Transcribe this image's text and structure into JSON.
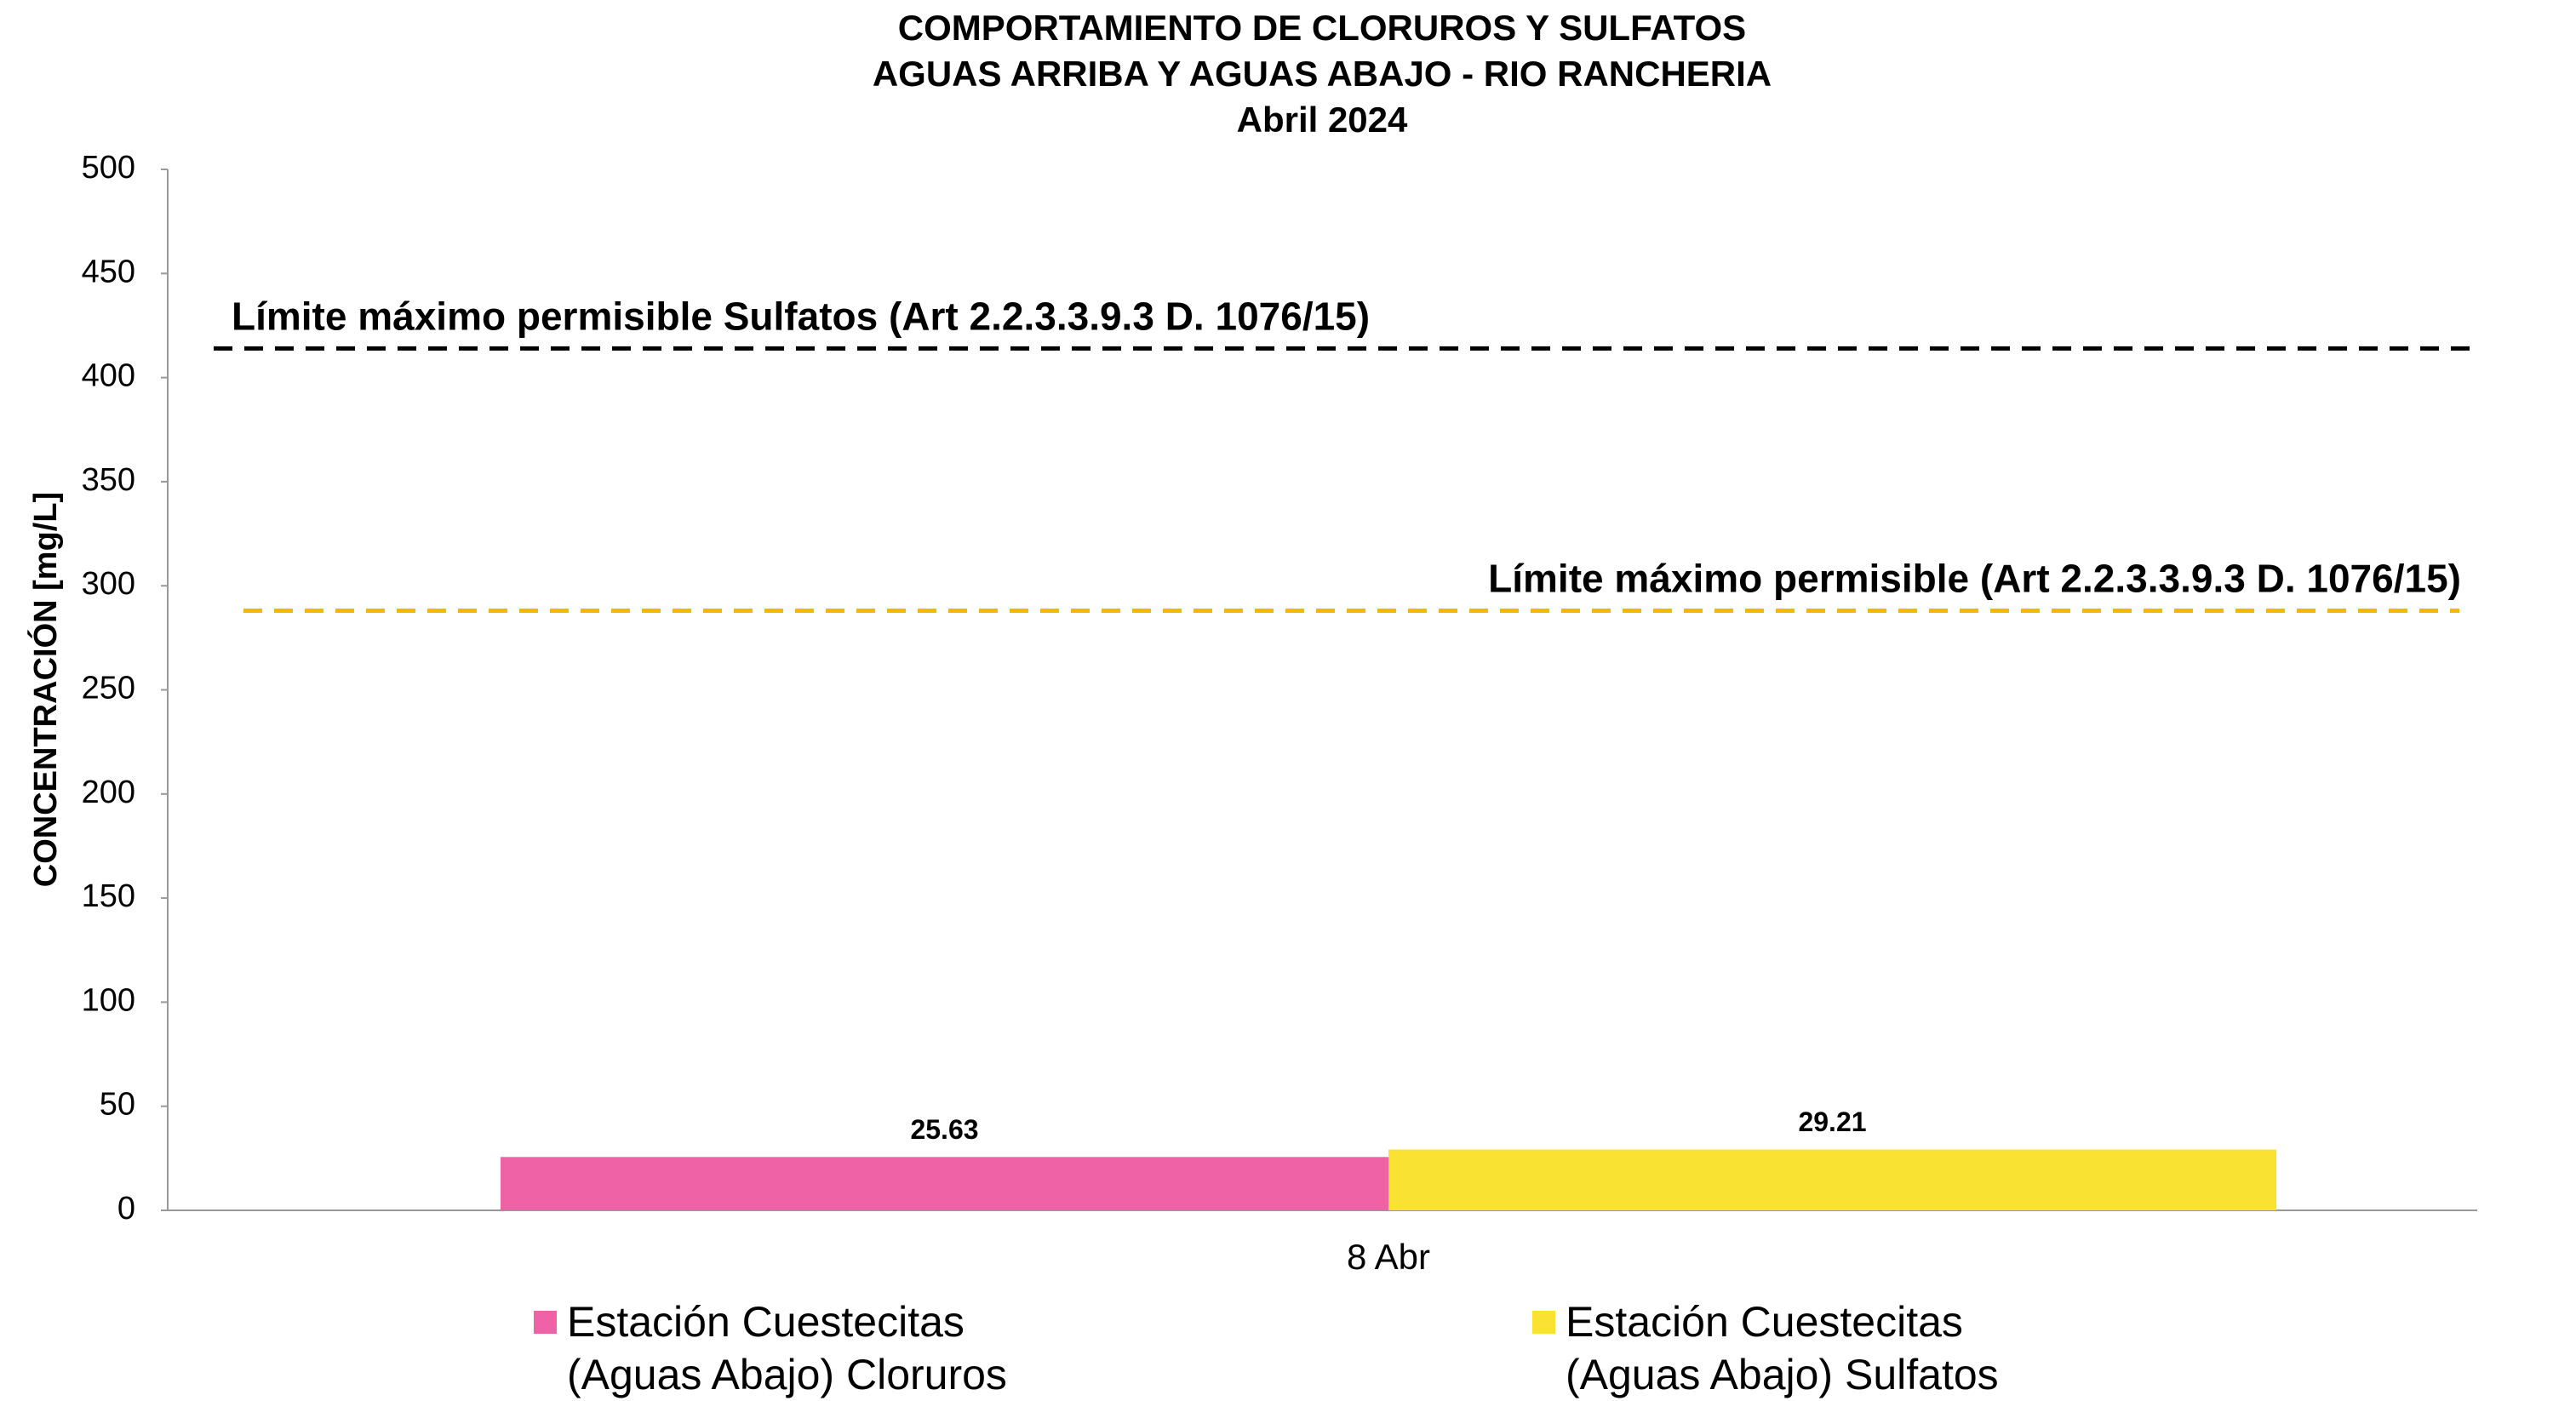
{
  "chart_data": {
    "type": "bar",
    "title": [
      "COMPORTAMIENTO DE CLORUROS Y SULFATOS",
      "AGUAS ARRIBA Y AGUAS ABAJO - RIO RANCHERIA",
      "Abril 2024"
    ],
    "y_label": "CONCENTRACIÓN [mg/L]",
    "categories": [
      "8 Abr"
    ],
    "series": [
      {
        "name": "Estación Cuestecitas (Aguas Abajo) Cloruros",
        "color": "#f062a6",
        "values": [
          25.63
        ]
      },
      {
        "name": "Estación Cuestecitas (Aguas Abajo) Sulfatos",
        "color": "#f9e231",
        "values": [
          29.21
        ]
      }
    ],
    "ylim": [
      0,
      500
    ],
    "yticks": [
      0,
      50,
      100,
      150,
      200,
      250,
      300,
      350,
      400,
      450,
      500
    ],
    "reference_lines": [
      {
        "label": "Límite máximo permisible Sulfatos (Art 2.2.3.3.9.3 D. 1076/15)",
        "value": 414,
        "color": "#000000"
      },
      {
        "label": "Límite máximo permisible (Art 2.2.3.3.9.3 D. 1076/15)",
        "value": 288,
        "color": "#f5b800"
      }
    ]
  }
}
